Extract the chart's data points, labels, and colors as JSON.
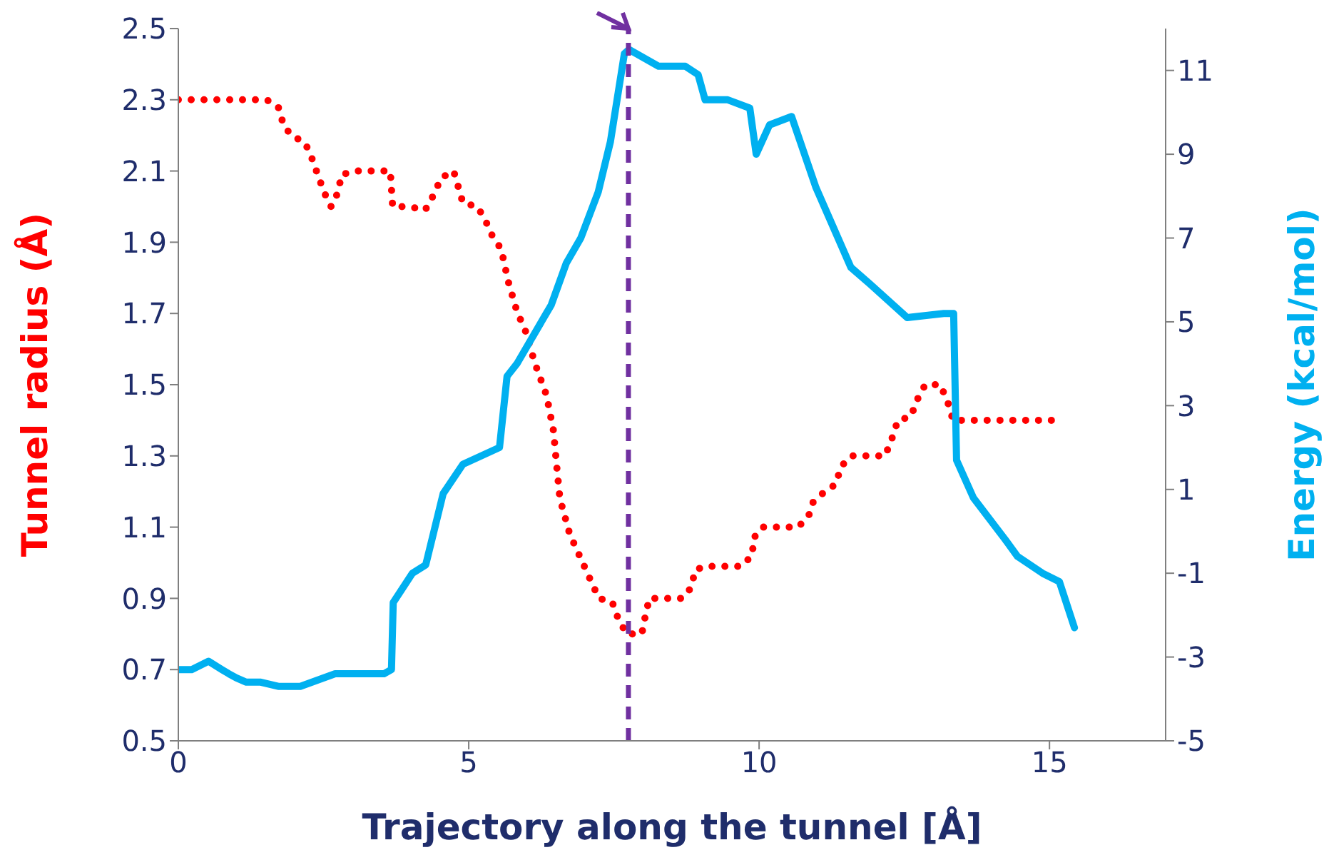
{
  "chart_data": {
    "type": "line",
    "xlabel": "Trajectory along the tunnel [Å]",
    "ylabel": "Tunnel radius (Å)",
    "y2label": "Energy (kcal/mol)",
    "xlim": [
      0,
      17
    ],
    "xticks": [
      0,
      5,
      10,
      15
    ],
    "ylim": [
      0.5,
      2.5
    ],
    "yticks": [
      0.5,
      0.7,
      0.9,
      1.1,
      1.3,
      1.5,
      1.7,
      1.9,
      2.1,
      2.3,
      2.5
    ],
    "y2lim": [
      -5,
      12
    ],
    "y2ticks": [
      -5,
      -3,
      -1,
      1,
      3,
      5,
      7,
      9,
      11
    ],
    "grid": false,
    "legend": false,
    "series": [
      {
        "color": "#ff0000",
        "line_style": "dotted",
        "x": [
          0,
          0.6,
          1.2,
          1.52,
          1.72,
          1.81,
          1.94,
          2.18,
          2.29,
          2.4,
          2.51,
          2.63,
          2.75,
          2.81,
          3.06,
          3.36,
          3.65,
          3.69,
          3.97,
          4.25,
          4.42,
          4.52,
          4.74,
          4.83,
          4.9,
          5.15,
          5.29,
          5.4,
          5.56,
          5.68,
          5.84,
          5.96,
          6.14,
          6.34,
          6.46,
          6.51,
          6.57,
          6.74,
          6.99,
          7.24,
          7.47,
          7.58,
          7.72,
          7.98,
          8.04,
          8.11,
          8.37,
          8.68,
          8.83,
          8.9,
          9.08,
          9.69,
          9.88,
          9.91,
          10.06,
          10.67,
          10.85,
          10.93,
          11.13,
          11.32,
          11.41,
          11.59,
          12.17,
          12.29,
          12.39,
          12.61,
          12.73,
          12.86,
          13.12,
          13.25,
          13.34,
          13.63,
          14.23,
          15.16
        ],
        "values": [
          2.3,
          2.3,
          2.3,
          2.3,
          2.28,
          2.23,
          2.2,
          2.18,
          2.14,
          2.09,
          2.04,
          2.0,
          2.04,
          2.09,
          2.1,
          2.1,
          2.1,
          2.0,
          2.0,
          1.99,
          2.04,
          2.08,
          2.1,
          2.05,
          2.01,
          2.0,
          1.96,
          1.92,
          1.88,
          1.79,
          1.7,
          1.66,
          1.56,
          1.47,
          1.37,
          1.28,
          1.18,
          1.08,
          0.99,
          0.9,
          0.89,
          0.84,
          0.8,
          0.8,
          0.85,
          0.9,
          0.9,
          0.9,
          0.93,
          0.98,
          0.99,
          0.99,
          1.02,
          1.07,
          1.1,
          1.1,
          1.13,
          1.17,
          1.2,
          1.22,
          1.27,
          1.3,
          1.3,
          1.35,
          1.4,
          1.41,
          1.46,
          1.5,
          1.5,
          1.45,
          1.4,
          1.4,
          1.4,
          1.4
        ]
      },
      {
        "color": "#00b0f0",
        "axis": "y2",
        "x": [
          0,
          0.23,
          0.52,
          0.75,
          0.87,
          1.0,
          1.17,
          1.42,
          1.72,
          2.1,
          2.7,
          3.54,
          3.67,
          3.7,
          4.03,
          4.26,
          4.56,
          4.9,
          5.53,
          5.66,
          5.83,
          6.42,
          6.68,
          6.93,
          7.23,
          7.44,
          7.68,
          7.76,
          8.27,
          8.73,
          8.95,
          9.07,
          9.46,
          9.84,
          9.95,
          10.18,
          10.56,
          10.98,
          11.58,
          11.91,
          12.55,
          13.18,
          13.35,
          13.4,
          13.69,
          14.24,
          14.45,
          14.88,
          15.17,
          15.43
        ],
        "values": [
          -3.3,
          -3.3,
          -3.1,
          -3.3,
          -3.4,
          -3.5,
          -3.6,
          -3.6,
          -3.7,
          -3.7,
          -3.4,
          -3.4,
          -3.3,
          -1.7,
          -1.0,
          -0.8,
          0.9,
          1.6,
          2.0,
          3.7,
          4.0,
          5.4,
          6.4,
          7.0,
          8.1,
          9.3,
          11.4,
          11.5,
          11.1,
          11.1,
          10.9,
          10.3,
          10.3,
          10.1,
          9.0,
          9.7,
          9.9,
          8.2,
          6.3,
          5.9,
          5.1,
          5.2,
          5.2,
          1.7,
          0.8,
          -0.2,
          -0.6,
          -1.0,
          -1.2,
          -2.3
        ]
      }
    ],
    "ref_lines": [
      {
        "axis": "x",
        "value": 7.75,
        "color": "#7030a0",
        "line_style": "dashed"
      }
    ]
  }
}
